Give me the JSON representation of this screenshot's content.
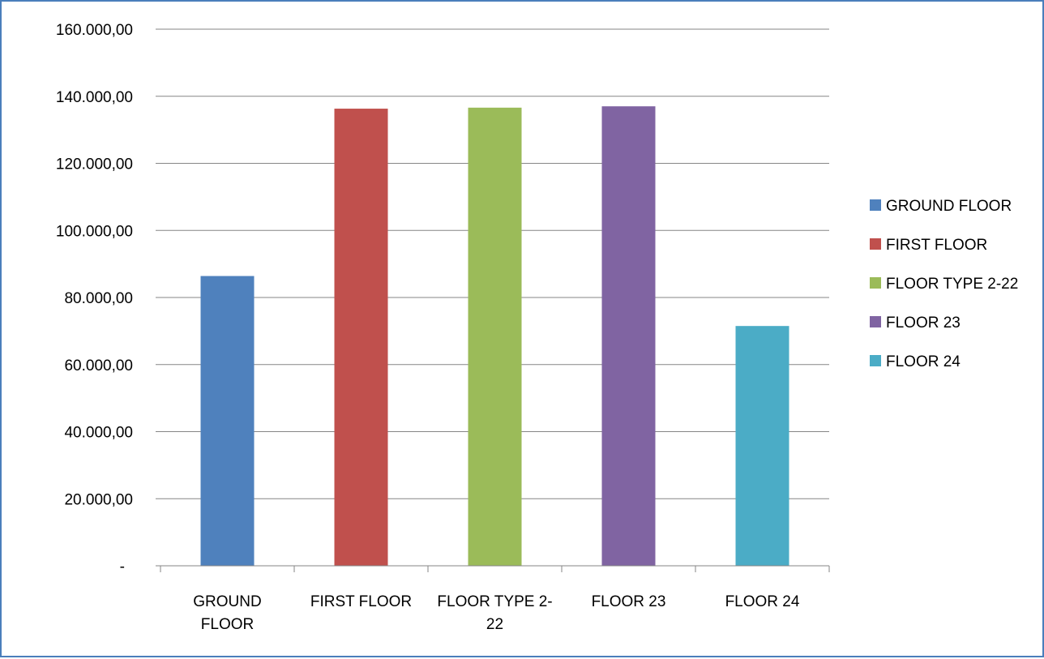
{
  "chart_data": {
    "type": "bar",
    "categories": [
      "GROUND FLOOR",
      "FIRST FLOOR",
      "FLOOR TYPE 2-22",
      "FLOOR 23",
      "FLOOR 24"
    ],
    "category_label_lines": [
      [
        "GROUND",
        "FLOOR"
      ],
      [
        "FIRST FLOOR"
      ],
      [
        "FLOOR TYPE 2-",
        "22"
      ],
      [
        "FLOOR 23"
      ],
      [
        "FLOOR 24"
      ]
    ],
    "values": [
      86400,
      136300,
      136600,
      137000,
      71500
    ],
    "colors": [
      "#4f81bd",
      "#c0504d",
      "#9bbb59",
      "#8064a2",
      "#4bacc6"
    ],
    "ylim": [
      0,
      160000
    ],
    "ytick_labels": [
      "-",
      "20.000,00",
      "40.000,00",
      "60.000,00",
      "80.000,00",
      "100.000,00",
      "120.000,00",
      "140.000,00",
      "160.000,00"
    ],
    "grid": true,
    "legend": {
      "placement": "right",
      "entries": [
        "GROUND FLOOR",
        "FIRST FLOOR",
        "FLOOR TYPE 2-22",
        "FLOOR 23",
        "FLOOR 24"
      ]
    }
  }
}
